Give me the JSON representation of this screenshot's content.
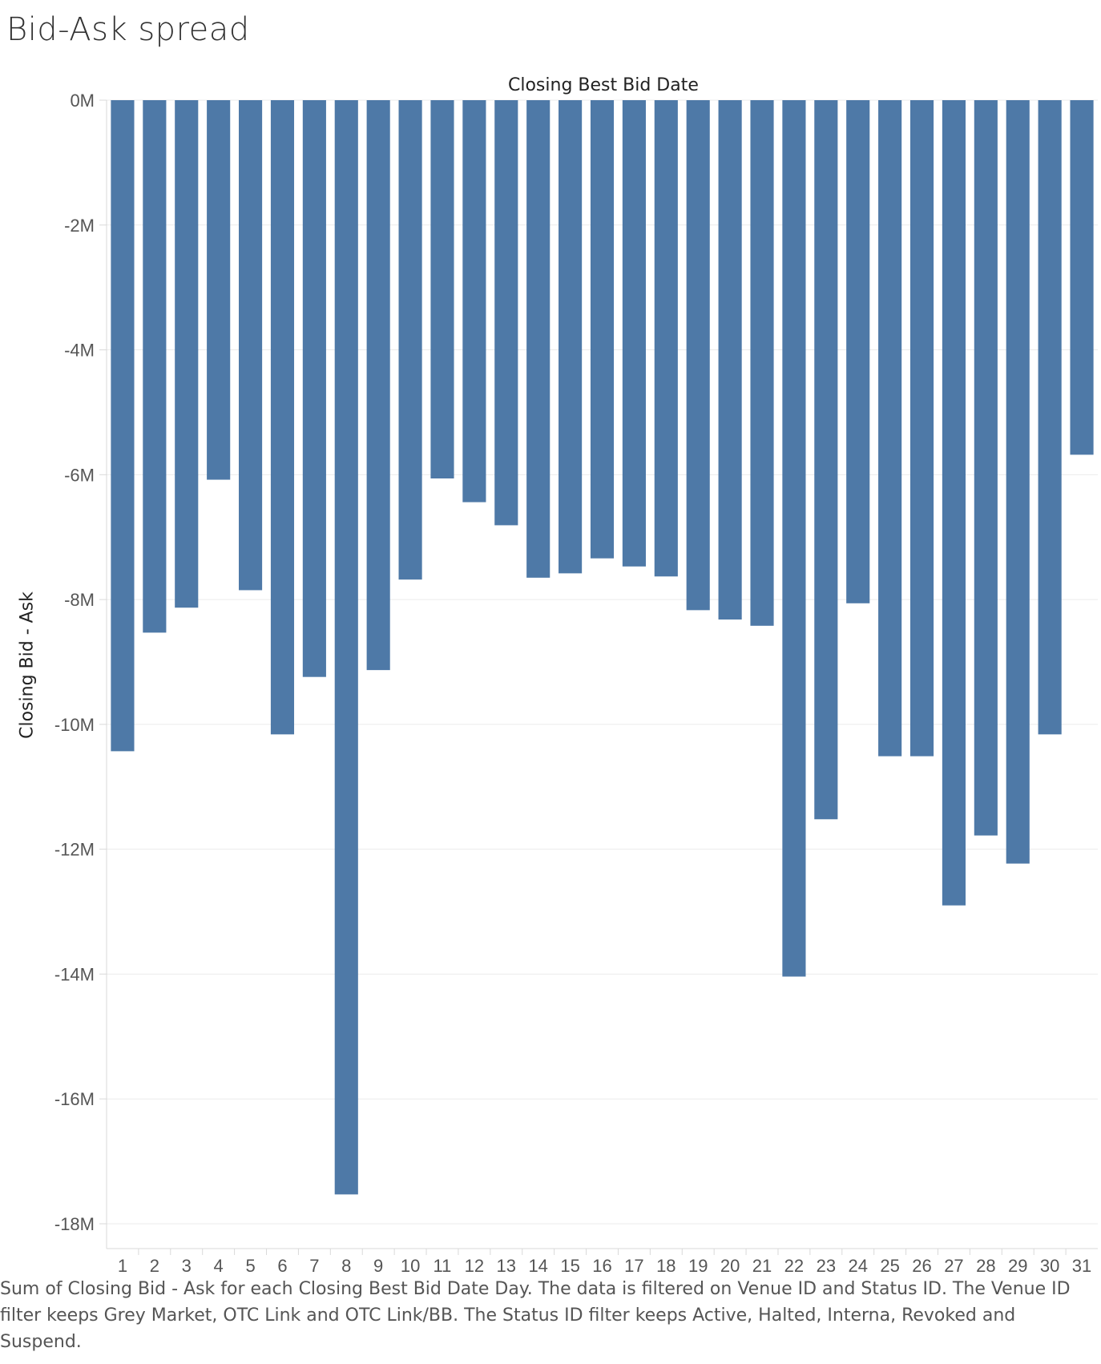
{
  "title": "Bid-Ask spread",
  "caption": "Sum of Closing Bid - Ask for each Closing Best Bid Date Day. The data is filtered on Venue ID and Status ID. The Venue ID filter keeps Grey Market, OTC Link and OTC Link/BB. The Status ID filter keeps Active, Halted, Interna, Revoked and Suspend.",
  "colors": {
    "bar": "#4e79a7",
    "grid": "#ebebeb",
    "axis": "#d9d9d9"
  },
  "chart_data": {
    "type": "bar",
    "title": "Bid-Ask spread",
    "xlabel": "Closing Best Bid Date",
    "ylabel": "Closing Bid - Ask",
    "ylim": [
      -18500000,
      0
    ],
    "yticks": [
      {
        "value": 0,
        "label": "0M"
      },
      {
        "value": -2000000,
        "label": "-2M"
      },
      {
        "value": -4000000,
        "label": "-4M"
      },
      {
        "value": -6000000,
        "label": "-6M"
      },
      {
        "value": -8000000,
        "label": "-8M"
      },
      {
        "value": -10000000,
        "label": "-10M"
      },
      {
        "value": -12000000,
        "label": "-12M"
      },
      {
        "value": -14000000,
        "label": "-14M"
      },
      {
        "value": -16000000,
        "label": "-16M"
      },
      {
        "value": -18000000,
        "label": "-18M"
      }
    ],
    "categories": [
      "1",
      "2",
      "3",
      "4",
      "5",
      "6",
      "7",
      "8",
      "9",
      "10",
      "11",
      "12",
      "13",
      "14",
      "15",
      "16",
      "17",
      "18",
      "19",
      "20",
      "21",
      "22",
      "23",
      "24",
      "25",
      "26",
      "27",
      "28",
      "29",
      "30",
      "31"
    ],
    "values": [
      -10430000,
      -8530000,
      -8130000,
      -6080000,
      -7850000,
      -10160000,
      -9240000,
      -17530000,
      -9130000,
      -7680000,
      -6060000,
      -6440000,
      -6810000,
      -7650000,
      -7580000,
      -7340000,
      -7470000,
      -7630000,
      -8170000,
      -8320000,
      -8420000,
      -14040000,
      -11520000,
      -8060000,
      -10510000,
      -10510000,
      -12900000,
      -11780000,
      -12230000,
      -10160000,
      -5680000
    ],
    "grid": true
  }
}
